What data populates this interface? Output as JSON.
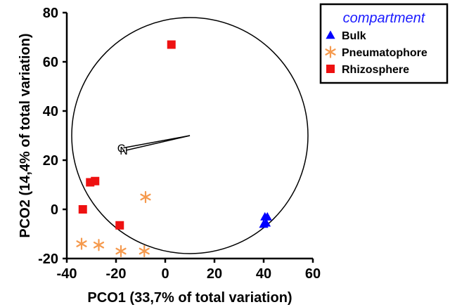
{
  "chart_data": {
    "type": "scatter",
    "xlabel": "PCO1 (33,7% of total variation)",
    "ylabel": "PCO2 (14,4% of total variation)",
    "xlim": [
      -40,
      60
    ],
    "ylim": [
      -20,
      80
    ],
    "x_ticks": [
      "-40",
      "-20",
      "0",
      "20",
      "40",
      "60"
    ],
    "y_ticks": [
      "-20",
      "0",
      "20",
      "40",
      "60",
      "80"
    ],
    "grid": false,
    "legend": {
      "title": "compartment",
      "placement": "top-right",
      "title_color": "#1a1aff"
    },
    "series": [
      {
        "name": "Bulk",
        "marker": "triangle",
        "color": "#0000ff",
        "points": [
          [
            40.5,
            -3
          ],
          [
            41.5,
            -3
          ],
          [
            40,
            -6
          ],
          [
            41,
            -5.5
          ]
        ]
      },
      {
        "name": "Pneumatophore",
        "marker": "asterisk",
        "color": "#f59a4e",
        "points": [
          [
            -8,
            5
          ],
          [
            -34,
            -14
          ],
          [
            -27,
            -14.5
          ],
          [
            -18,
            -17
          ],
          [
            -8.5,
            -17
          ]
        ]
      },
      {
        "name": "Rhizosphere",
        "marker": "square",
        "color": "#ee1111",
        "points": [
          [
            2.5,
            67
          ],
          [
            -30.5,
            11
          ],
          [
            -28.5,
            11.5
          ],
          [
            -33.5,
            0
          ],
          [
            -18.5,
            -6.5
          ]
        ]
      }
    ],
    "circle": {
      "center": [
        10,
        30
      ],
      "radius": 48
    },
    "vectors": [
      {
        "from": [
          10,
          30
        ],
        "to": [
          -17,
          25
        ],
        "label": "C"
      },
      {
        "from": [
          10,
          30
        ],
        "to": [
          -16,
          24
        ],
        "label": "N"
      }
    ]
  }
}
